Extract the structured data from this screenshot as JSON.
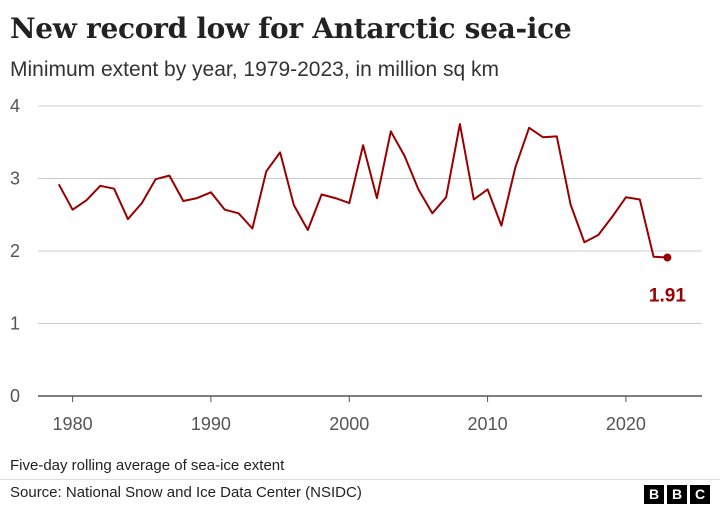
{
  "title": "New record low for Antarctic sea-ice",
  "subtitle": "Minimum extent by year, 1979-2023, in million sq km",
  "note": "Five-day rolling average of sea-ice extent",
  "source": "Source: National Snow and Ice Data Center (NSIDC)",
  "logo": [
    "B",
    "B",
    "C"
  ],
  "colors": {
    "line": "#990000",
    "grid": "#cccccc",
    "axis": "#555555"
  },
  "chart_data": {
    "type": "line",
    "title": "New record low for Antarctic sea-ice",
    "subtitle": "Minimum extent by year, 1979-2023, in million sq km",
    "xlabel": "",
    "ylabel": "",
    "xlim": [
      1977.5,
      2025.5
    ],
    "ylim": [
      0,
      4
    ],
    "grid": true,
    "x_ticks": [
      1980,
      1990,
      2000,
      2010,
      2020
    ],
    "y_ticks": [
      0,
      1,
      2,
      3,
      4
    ],
    "series": [
      {
        "x": [
          1979,
          1980,
          1981,
          1982,
          1983,
          1984,
          1985,
          1986,
          1987,
          1988,
          1989,
          1990,
          1991,
          1992,
          1993,
          1994,
          1995,
          1996,
          1997,
          1998,
          1999,
          2000,
          2001,
          2002,
          2003,
          2004,
          2005,
          2006,
          2007,
          2008,
          2009,
          2010,
          2011,
          2012,
          2013,
          2014,
          2015,
          2016,
          2017,
          2018,
          2019,
          2020,
          2021,
          2022,
          2023
        ],
        "values": [
          2.92,
          2.57,
          2.7,
          2.9,
          2.86,
          2.44,
          2.66,
          2.99,
          3.04,
          2.69,
          2.73,
          2.81,
          2.57,
          2.52,
          2.31,
          3.1,
          3.36,
          2.63,
          2.29,
          2.78,
          2.73,
          2.66,
          3.46,
          2.73,
          3.65,
          3.31,
          2.85,
          2.52,
          2.74,
          3.75,
          2.71,
          2.85,
          2.35,
          3.15,
          3.7,
          3.57,
          3.58,
          2.64,
          2.12,
          2.22,
          2.47,
          2.74,
          2.71,
          1.92,
          1.91
        ]
      }
    ],
    "end_label": "1.91"
  }
}
